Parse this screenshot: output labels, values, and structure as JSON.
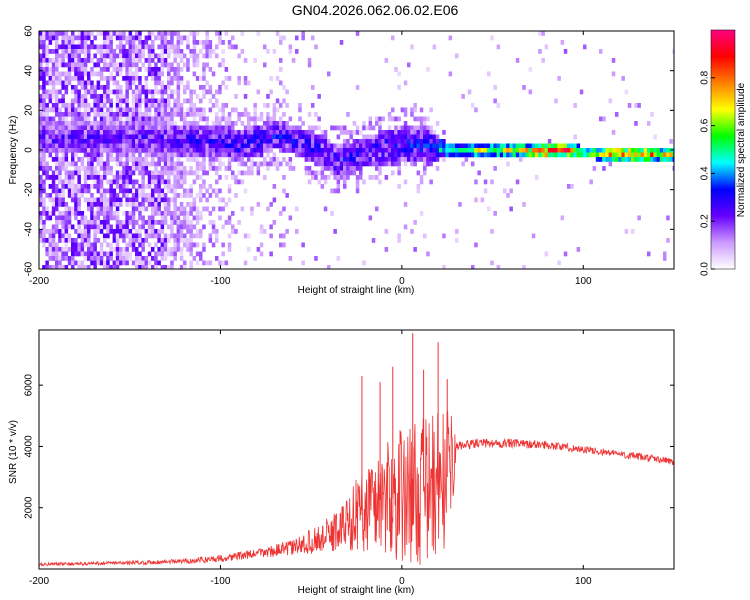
{
  "title": "GN04.2026.062.06.02.E06",
  "chart_data": [
    {
      "type": "heatmap",
      "name": "spectrogram",
      "xlabel": "Height of straight line (km)",
      "ylabel": "Frequency (Hz)",
      "xlim": [
        -200,
        150
      ],
      "ylim": [
        -60,
        60
      ],
      "xticks": [
        -200,
        -100,
        0,
        100
      ],
      "xtick_labels": [
        "-200",
        "-100",
        "0",
        "100"
      ],
      "yticks": [
        -60,
        -40,
        -20,
        0,
        20,
        40,
        60
      ],
      "ytick_labels": [
        "-60",
        "-40",
        "-20",
        "0",
        "20",
        "40",
        "60"
      ],
      "colorbar": {
        "label": "Normalized spectral amplitude",
        "range": [
          0.0,
          1.0
        ],
        "ticks": [
          0.0,
          0.2,
          0.4,
          0.6,
          0.8
        ],
        "tick_labels": [
          "0.0",
          "0.2",
          "0.4",
          "0.6",
          "0.8"
        ],
        "colors": [
          "#ffffff",
          "#cc99ff",
          "#6600ff",
          "#0000ff",
          "#00ffff",
          "#00ff00",
          "#ffff00",
          "#ff8000",
          "#ff0000",
          "#ff0080"
        ]
      },
      "ridge": {
        "x": [
          -140,
          -120,
          -100,
          -90,
          -80,
          -70,
          -60,
          -50,
          -40,
          -35,
          -25,
          -15,
          -5,
          5,
          15,
          20,
          25,
          40,
          60,
          70,
          80,
          90,
          100,
          110,
          120,
          130,
          140,
          150
        ],
        "freq": [
          7,
          6,
          5,
          4,
          6,
          9,
          6,
          3,
          -3,
          -5,
          -1,
          2,
          3,
          4,
          3,
          2,
          1,
          1,
          1,
          0.5,
          0.5,
          1,
          0,
          -1,
          -1,
          -1,
          -1,
          -1
        ],
        "amp": [
          0.25,
          0.28,
          0.28,
          0.3,
          0.32,
          0.32,
          0.3,
          0.3,
          0.32,
          0.3,
          0.3,
          0.3,
          0.32,
          0.32,
          0.33,
          0.45,
          0.5,
          0.58,
          0.62,
          0.7,
          0.9,
          0.8,
          0.6,
          0.75,
          0.85,
          0.8,
          0.72,
          0.65
        ],
        "width": [
          8,
          8,
          8,
          8,
          8,
          7,
          7,
          8,
          8,
          8,
          8,
          8,
          9,
          9,
          9,
          5,
          3,
          3,
          3,
          3,
          3,
          3,
          3,
          3,
          3,
          3,
          3,
          3
        ]
      }
    },
    {
      "type": "line",
      "name": "snr",
      "xlabel": "Height of straight line (km)",
      "ylabel": "SNR (10 * v/v)",
      "color": "#ee3333",
      "xlim": [
        -200,
        150
      ],
      "ylim": [
        0,
        7800
      ],
      "xticks": [
        -200,
        -100,
        0,
        100
      ],
      "xtick_labels": [
        "-200",
        "-100",
        "0",
        "100"
      ],
      "yticks": [
        2000,
        4000,
        6000
      ],
      "ytick_labels": [
        "2000",
        "4000",
        "6000"
      ],
      "envelope": {
        "x": [
          -200,
          -150,
          -120,
          -100,
          -80,
          -60,
          -50,
          -40,
          -30,
          -25,
          -20,
          -15,
          -10,
          -5,
          0,
          5,
          10,
          15,
          20,
          25,
          28,
          30,
          40,
          60,
          80,
          100,
          120,
          150
        ],
        "mean": [
          150,
          200,
          250,
          350,
          500,
          700,
          900,
          1100,
          1500,
          1800,
          2000,
          2200,
          2300,
          2300,
          2400,
          2500,
          2500,
          2600,
          2800,
          3000,
          3500,
          4000,
          4100,
          4100,
          4050,
          3900,
          3750,
          3500
        ],
        "noise": [
          50,
          60,
          80,
          120,
          150,
          250,
          400,
          600,
          900,
          1200,
          1500,
          1700,
          1900,
          2000,
          2200,
          2300,
          2400,
          2400,
          2400,
          2200,
          1500,
          150,
          150,
          150,
          130,
          130,
          120,
          120
        ]
      },
      "spikes": [
        {
          "x": -22,
          "y": 6300
        },
        {
          "x": -12,
          "y": 6100
        },
        {
          "x": -5,
          "y": 6600
        },
        {
          "x": 6,
          "y": 7700
        },
        {
          "x": 12,
          "y": 6500
        },
        {
          "x": 20,
          "y": 7400
        },
        {
          "x": 25,
          "y": 6200
        }
      ]
    }
  ]
}
